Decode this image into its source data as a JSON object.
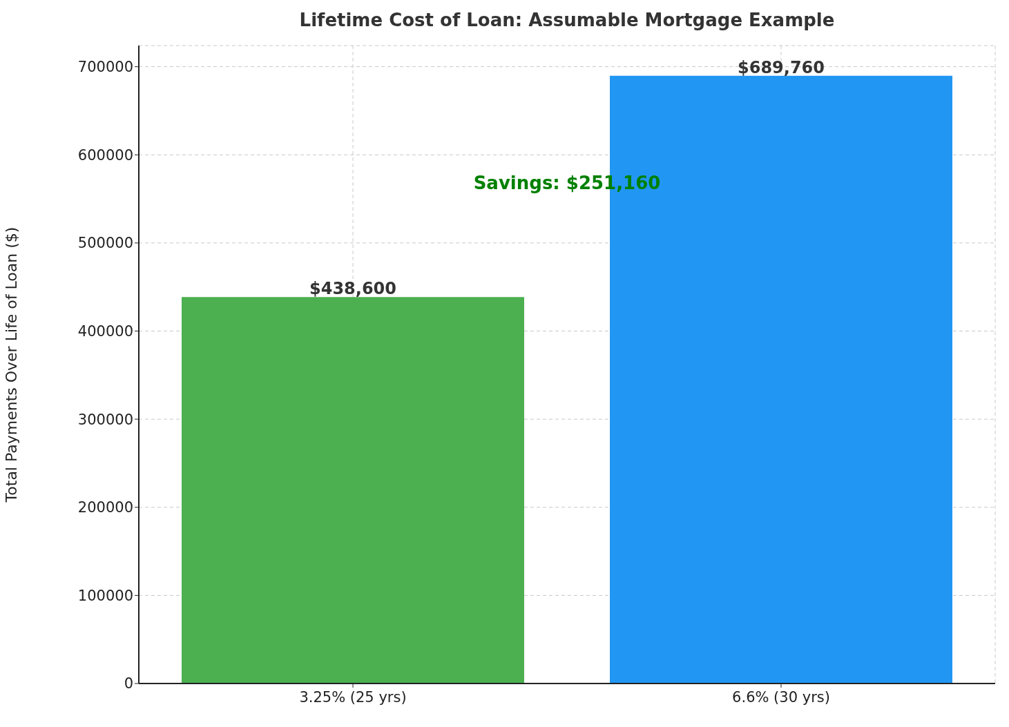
{
  "chart_data": {
    "type": "bar",
    "title": "Lifetime Cost of Loan: Assumable Mortgage Example",
    "ylabel": "Total Payments Over Life of Loan ($)",
    "categories": [
      "3.25% (25 yrs)",
      "6.6% (30 yrs)"
    ],
    "values": [
      438600,
      689760
    ],
    "colors": [
      "#4caf50",
      "#2196f3"
    ],
    "value_labels": [
      "$438,600",
      "$689,760"
    ],
    "annotations": [
      "Savings: $251,160"
    ],
    "ylim": [
      0,
      724000
    ],
    "yticks": [
      0,
      100000,
      200000,
      300000,
      400000,
      500000,
      600000,
      700000
    ],
    "grid": true
  }
}
